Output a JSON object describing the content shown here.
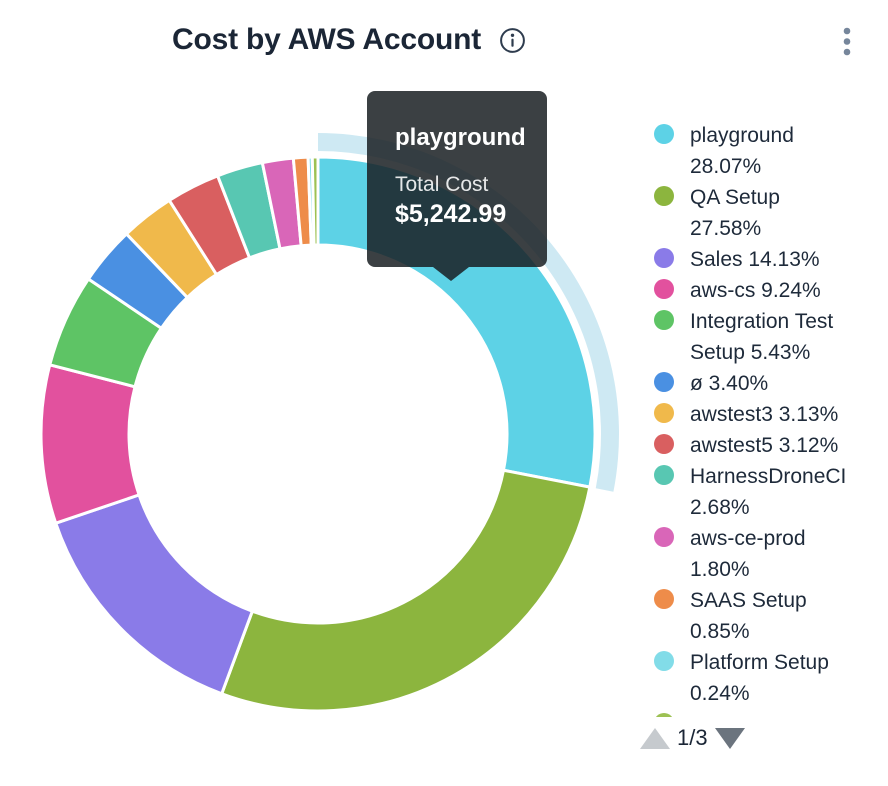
{
  "header": {
    "title": "Cost by AWS Account"
  },
  "tooltip": {
    "name": "playground",
    "label": "Total Cost",
    "value": "$5,242.99"
  },
  "legend": {
    "pagination": {
      "indicator": "1/3"
    }
  },
  "chart_data": {
    "type": "pie",
    "subtype": "donut",
    "title": "Cost by AWS Account",
    "unit": "percent",
    "legend_position": "right",
    "legend_pages": "1/3",
    "hovered_segment": {
      "name": "playground",
      "total_cost": "$5,242.99",
      "value_pct": 28.07
    },
    "series": [
      {
        "name": "playground",
        "value": 28.07,
        "color": "#5DD2E6",
        "legend_label": "playground\n28.07%"
      },
      {
        "name": "QA Setup",
        "value": 27.58,
        "color": "#8CB53E",
        "legend_label": "QA Setup\n27.58%"
      },
      {
        "name": "Sales",
        "value": 14.13,
        "color": "#8A7BE8",
        "legend_label": "Sales 14.13%"
      },
      {
        "name": "aws-cs",
        "value": 9.24,
        "color": "#E2519E",
        "legend_label": "aws-cs 9.24%"
      },
      {
        "name": "Integration Test Setup",
        "value": 5.43,
        "color": "#5EC465",
        "legend_label": "Integration Test\nSetup 5.43%"
      },
      {
        "name": "ø",
        "value": 3.4,
        "color": "#4A90E2",
        "legend_label": "ø 3.40%"
      },
      {
        "name": "awstest3",
        "value": 3.13,
        "color": "#F0B94B",
        "legend_label": "awstest3 3.13%"
      },
      {
        "name": "awstest5",
        "value": 3.12,
        "color": "#D95F60",
        "legend_label": "awstest5 3.12%"
      },
      {
        "name": "HarnessDroneCI",
        "value": 2.68,
        "color": "#58C7B2",
        "legend_label": "HarnessDroneCI\n2.68%"
      },
      {
        "name": "aws-ce-prod",
        "value": 1.8,
        "color": "#D966B8",
        "legend_label": "aws-ce-prod\n1.80%"
      },
      {
        "name": "SAAS Setup",
        "value": 0.85,
        "color": "#EE8C4A",
        "legend_label": "SAAS Setup\n0.85%"
      },
      {
        "name": "Platform Setup",
        "value": 0.24,
        "color": "#82DCE8",
        "legend_label": "Platform Setup\n0.24%"
      },
      {
        "name": "",
        "value": 0.33,
        "color": "#9DC153",
        "legend_label": ""
      }
    ],
    "highlight": {
      "segment": "playground",
      "color": "#CEE9F3"
    }
  }
}
